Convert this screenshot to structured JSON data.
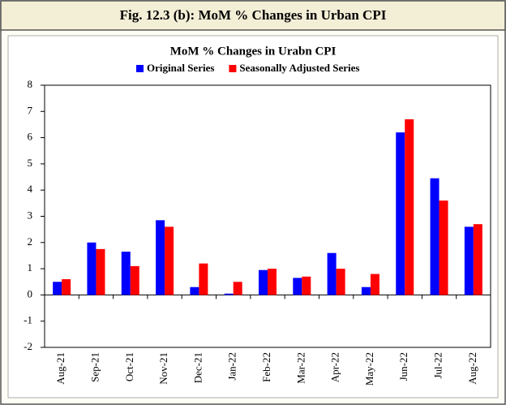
{
  "header": {
    "title": "Fig. 12.3 (b): MoM % Changes in Urban CPI"
  },
  "chart_data": {
    "type": "bar",
    "title": "MoM % Changes in Urabn CPI",
    "categories": [
      "Aug-21",
      "Sep-21",
      "Oct-21",
      "Nov-21",
      "Dec-21",
      "Jan-22",
      "Feb-22",
      "Mar-22",
      "Apr-22",
      "May-22",
      "Jun-22",
      "Jul-22",
      "Aug-22"
    ],
    "series": [
      {
        "name": "Original Series",
        "color": "#0000ff",
        "values": [
          0.5,
          2.0,
          1.65,
          2.85,
          0.3,
          0.05,
          0.95,
          0.65,
          1.6,
          0.3,
          6.2,
          4.45,
          2.6
        ]
      },
      {
        "name": "Seasonally Adjusted Series",
        "color": "#ff0000",
        "values": [
          0.6,
          1.75,
          1.1,
          2.6,
          1.2,
          0.5,
          1.0,
          0.7,
          1.0,
          0.8,
          6.7,
          3.6,
          2.7
        ]
      }
    ],
    "ylim": [
      -2,
      8
    ],
    "yticks": [
      -2,
      -1,
      0,
      1,
      2,
      3,
      4,
      5,
      6,
      7,
      8
    ],
    "legend": "top",
    "grid": false
  }
}
